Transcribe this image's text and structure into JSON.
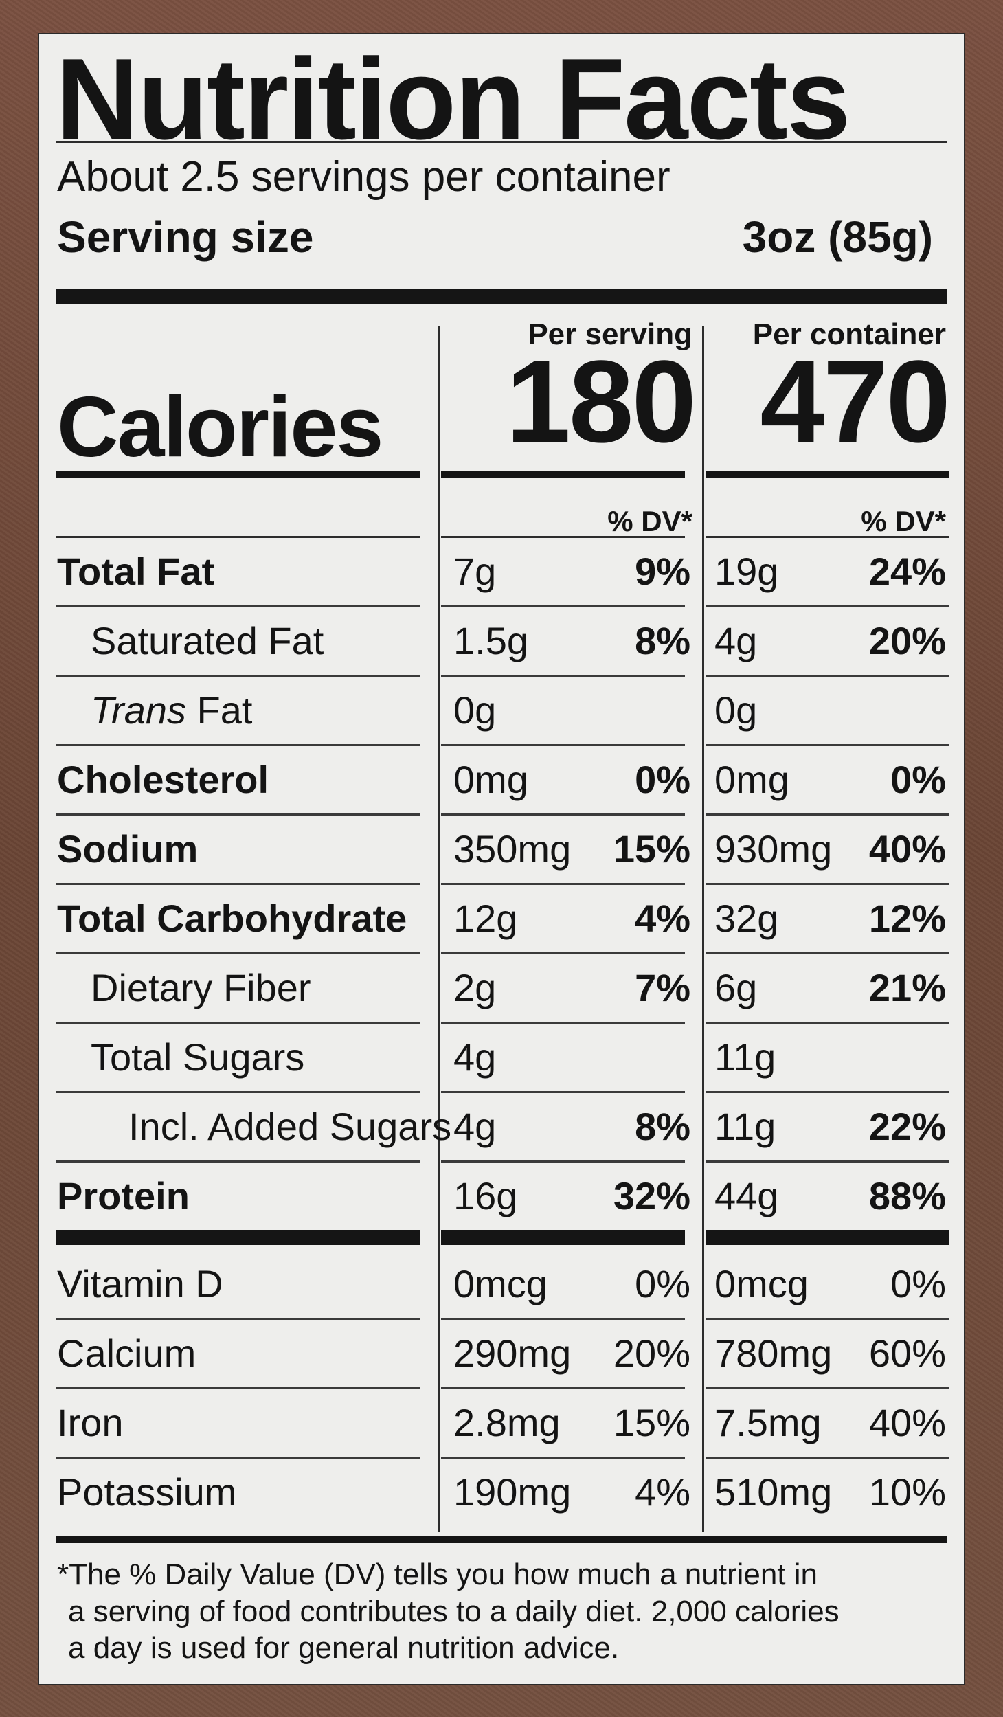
{
  "title": "Nutrition Facts",
  "servings_per_container": "About 2.5 servings per container",
  "serving_size": {
    "label": "Serving size",
    "value": "3oz (85g)"
  },
  "columns": {
    "per_serving": "Per serving",
    "per_container": "Per container",
    "dv_header": "% DV*"
  },
  "calories": {
    "label": "Calories",
    "per_serving": "180",
    "per_container": "470"
  },
  "nutrients": [
    {
      "name": "Total Fat",
      "bold": true,
      "indent": 0,
      "serv_amt": "7g",
      "serv_dv": "9%",
      "cont_amt": "19g",
      "cont_dv": "24%"
    },
    {
      "name": "Saturated Fat",
      "bold": false,
      "indent": 1,
      "serv_amt": "1.5g",
      "serv_dv": "8%",
      "cont_amt": "4g",
      "cont_dv": "20%"
    },
    {
      "name_italic": "Trans",
      "name": " Fat",
      "bold": false,
      "indent": 1,
      "serv_amt": "0g",
      "serv_dv": "",
      "cont_amt": "0g",
      "cont_dv": ""
    },
    {
      "name": "Cholesterol",
      "bold": true,
      "indent": 0,
      "serv_amt": "0mg",
      "serv_dv": "0%",
      "cont_amt": "0mg",
      "cont_dv": "0%"
    },
    {
      "name": "Sodium",
      "bold": true,
      "indent": 0,
      "serv_amt": "350mg",
      "serv_dv": "15%",
      "cont_amt": "930mg",
      "cont_dv": "40%"
    },
    {
      "name": "Total Carbohydrate",
      "bold": true,
      "indent": 0,
      "serv_amt": "12g",
      "serv_dv": "4%",
      "cont_amt": "32g",
      "cont_dv": "12%"
    },
    {
      "name": "Dietary Fiber",
      "bold": false,
      "indent": 1,
      "serv_amt": "2g",
      "serv_dv": "7%",
      "cont_amt": "6g",
      "cont_dv": "21%"
    },
    {
      "name": "Total Sugars",
      "bold": false,
      "indent": 1,
      "serv_amt": "4g",
      "serv_dv": "",
      "cont_amt": "11g",
      "cont_dv": ""
    },
    {
      "name": "Incl. Added Sugars",
      "bold": false,
      "indent": 2,
      "serv_amt": "4g",
      "serv_dv": "8%",
      "cont_amt": "11g",
      "cont_dv": "22%"
    },
    {
      "name": "Protein",
      "bold": true,
      "indent": 0,
      "serv_amt": "16g",
      "serv_dv": "32%",
      "cont_amt": "44g",
      "cont_dv": "88%"
    }
  ],
  "vitamins": [
    {
      "name": "Vitamin D",
      "serv_amt": "0mcg",
      "serv_dv": "0%",
      "cont_amt": "0mcg",
      "cont_dv": "0%"
    },
    {
      "name": "Calcium",
      "serv_amt": "290mg",
      "serv_dv": "20%",
      "cont_amt": "780mg",
      "cont_dv": "60%"
    },
    {
      "name": "Iron",
      "serv_amt": "2.8mg",
      "serv_dv": "15%",
      "cont_amt": "7.5mg",
      "cont_dv": "40%"
    },
    {
      "name": "Potassium",
      "serv_amt": "190mg",
      "serv_dv": "4%",
      "cont_amt": "510mg",
      "cont_dv": "10%"
    }
  ],
  "footnote": [
    "*The % Daily Value (DV) tells you how much a nutrient in",
    "a serving of food contributes to a daily diet. 2,000 calories",
    "a day is used for general nutrition advice."
  ]
}
